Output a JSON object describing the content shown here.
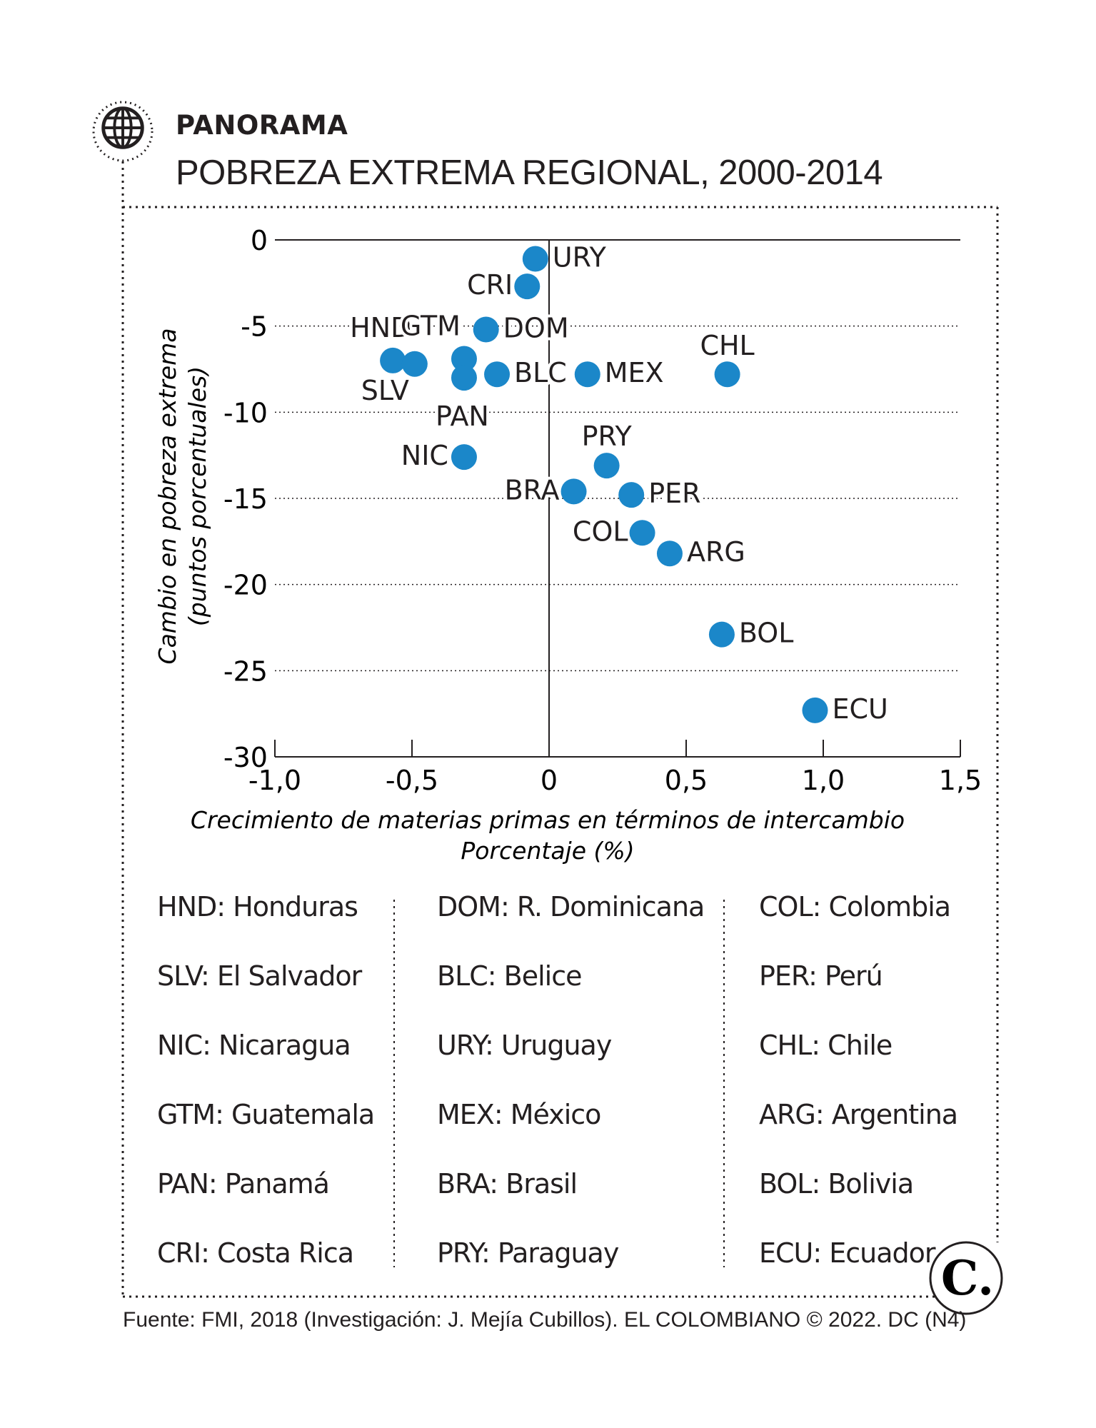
{
  "header": {
    "kicker": "PANORAMA",
    "title": "POBREZA EXTREMA REGIONAL, 2000-2014",
    "globe_icon": "globe-icon"
  },
  "chart_data": {
    "type": "scatter",
    "title": "POBREZA EXTREMA REGIONAL, 2000-2014",
    "xlabel": "Crecimiento de materias primas en términos de intercambio",
    "xlabel_line2": "Porcentaje (%)",
    "ylabel": "Cambio en pobreza extrema",
    "ylabel_line2": "(puntos porcentuales)",
    "xlim": [
      -1.0,
      1.5
    ],
    "ylim": [
      -30,
      0
    ],
    "x_ticks": [
      -1.0,
      -0.5,
      0,
      0.5,
      1.0,
      1.5
    ],
    "x_tick_labels": [
      "-1,0",
      "-0,5",
      "0",
      "0,5",
      "1,0",
      "1,5"
    ],
    "y_ticks": [
      0,
      -5,
      -10,
      -15,
      -20,
      -25,
      -30
    ],
    "y_tick_labels": [
      "0",
      "-5",
      "-10",
      "-15",
      "-20",
      "-25",
      "-30"
    ],
    "grid": "horizontal dotted",
    "point_color": "#1b87c9",
    "points": [
      {
        "label": "URY",
        "x": -0.05,
        "y": -1.1
      },
      {
        "label": "CRI",
        "x": -0.08,
        "y": -2.7
      },
      {
        "label": "DOM",
        "x": -0.23,
        "y": -5.2
      },
      {
        "label": "HND",
        "x": -0.57,
        "y": -7.0
      },
      {
        "label": "GTM",
        "x": -0.31,
        "y": -6.9
      },
      {
        "label": "SLV",
        "x": -0.49,
        "y": -7.2
      },
      {
        "label": "PAN",
        "x": -0.31,
        "y": -8.0
      },
      {
        "label": "BLC",
        "x": -0.19,
        "y": -7.8
      },
      {
        "label": "MEX",
        "x": 0.14,
        "y": -7.8
      },
      {
        "label": "CHL",
        "x": 0.65,
        "y": -7.8
      },
      {
        "label": "NIC",
        "x": -0.31,
        "y": -12.6
      },
      {
        "label": "PRY",
        "x": 0.21,
        "y": -13.1
      },
      {
        "label": "BRA",
        "x": 0.09,
        "y": -14.6
      },
      {
        "label": "PER",
        "x": 0.3,
        "y": -14.8
      },
      {
        "label": "COL",
        "x": 0.34,
        "y": -17.0
      },
      {
        "label": "ARG",
        "x": 0.44,
        "y": -18.2
      },
      {
        "label": "BOL",
        "x": 0.63,
        "y": -22.9
      },
      {
        "label": "ECU",
        "x": 0.97,
        "y": -27.3
      }
    ]
  },
  "legend": {
    "columns": [
      [
        "HND: Honduras",
        "SLV: El Salvador",
        "NIC: Nicaragua",
        "GTM: Guatemala",
        "PAN: Panamá",
        "CRI: Costa Rica"
      ],
      [
        "DOM: R. Dominicana",
        "BLC: Belice",
        "URY: Uruguay",
        "MEX: México",
        "BRA: Brasil",
        "PRY: Paraguay"
      ],
      [
        "COL: Colombia",
        "PER: Perú",
        "CHL: Chile",
        "ARG: Argentina",
        "BOL: Bolivia",
        "ECU: Ecuador"
      ]
    ]
  },
  "footer": {
    "source": "Fuente: FMI, 2018 (Investigación: J. Mejía Cubillos). EL COLOMBIANO © 2022. DC (N4)",
    "logo_text": "C."
  }
}
